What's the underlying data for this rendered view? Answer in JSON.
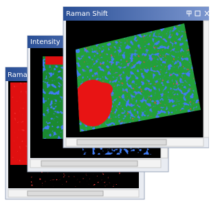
{
  "windows": [
    {
      "title": "Raman Shift"
    },
    {
      "title": "Intensity"
    },
    {
      "title": "Raman"
    }
  ]
}
